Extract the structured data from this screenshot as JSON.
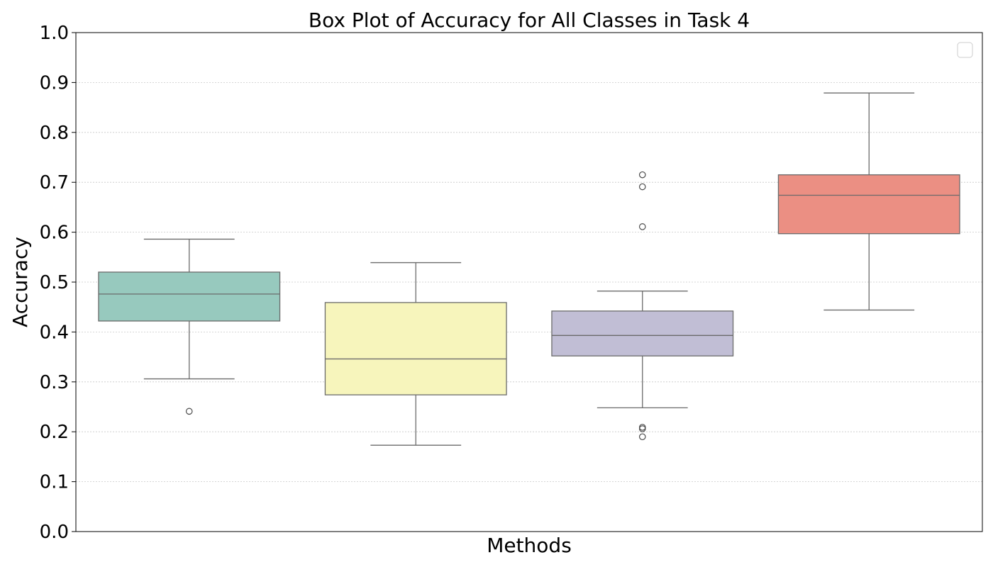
{
  "chart_data": {
    "type": "box",
    "title": "Box Plot of Accuracy for All Classes in Task 4",
    "xlabel": "Methods",
    "ylabel": "Accuracy",
    "ylim": [
      0.0,
      1.0
    ],
    "yticks": [
      "0.0",
      "0.1",
      "0.2",
      "0.3",
      "0.4",
      "0.5",
      "0.6",
      "0.7",
      "0.8",
      "0.9",
      "1.0"
    ],
    "grid": "horizontal dotted",
    "legend": "top-right (empty)",
    "series": [
      {
        "color": "#97c9be",
        "whisker_low": 0.306,
        "q1": 0.422,
        "median": 0.476,
        "q3": 0.52,
        "whisker_high": 0.586,
        "outliers": [
          0.241
        ]
      },
      {
        "color": "#f7f5bc",
        "whisker_low": 0.173,
        "q1": 0.274,
        "median": 0.346,
        "q3": 0.459,
        "whisker_high": 0.539,
        "outliers": []
      },
      {
        "color": "#c1bed5",
        "whisker_low": 0.248,
        "q1": 0.352,
        "median": 0.393,
        "q3": 0.442,
        "whisker_high": 0.482,
        "outliers": [
          0.715,
          0.691,
          0.611,
          0.209,
          0.206,
          0.19
        ]
      },
      {
        "color": "#eb8f83",
        "whisker_low": 0.444,
        "q1": 0.597,
        "median": 0.674,
        "q3": 0.715,
        "whisker_high": 0.879,
        "outliers": []
      }
    ]
  }
}
